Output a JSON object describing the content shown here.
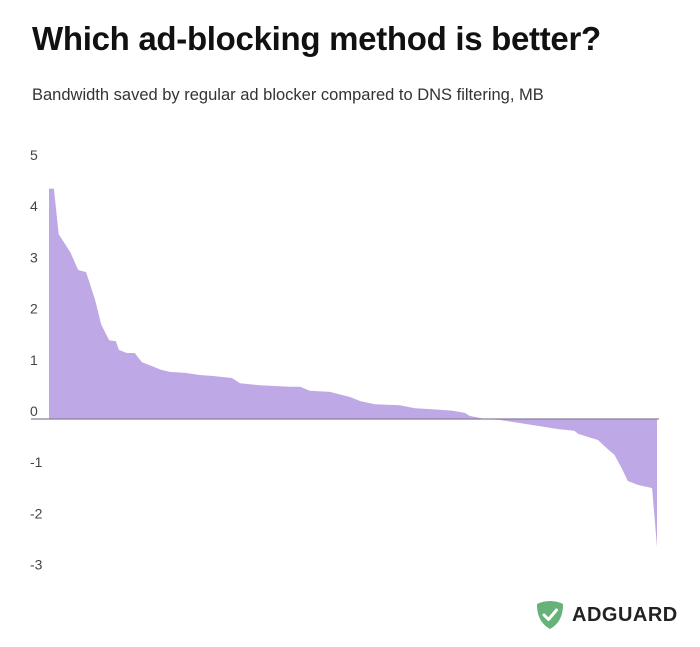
{
  "title": "Which ad-blocking method is better?",
  "subtitle": "Bandwidth saved by regular ad blocker compared to DNS filtering, MB",
  "brand": {
    "name": "ADGUARD",
    "color": "#67b279"
  },
  "chart_data": {
    "type": "area",
    "title": "Which ad-blocking method is better?",
    "subtitle": "Bandwidth saved by regular ad blocker compared to DNS filtering, MB",
    "xlabel": "",
    "ylabel": "",
    "ylim": [
      -3,
      5
    ],
    "yticks": [
      5,
      4,
      3,
      2,
      1,
      0,
      -1,
      -2,
      -3
    ],
    "xlim": [
      0,
      100
    ],
    "grid": false,
    "fill_color": "#bfa8e6",
    "axis_color": "#8a7f96",
    "x": [
      0,
      0.8,
      1.6,
      3.5,
      4.8,
      6.1,
      7.6,
      8.6,
      9.9,
      11.0,
      11.5,
      12.8,
      14.1,
      15.3,
      16.8,
      18.4,
      19.9,
      22.4,
      24.8,
      27.0,
      30.1,
      31.4,
      34.7,
      39.6,
      41.3,
      42.9,
      46.2,
      49.5,
      51.2,
      53.6,
      57.7,
      60.2,
      64.3,
      66.4,
      68.4,
      69.2,
      71.7,
      74.2,
      77.5,
      80.8,
      83.9,
      86.4,
      87.0,
      88.6,
      90.3,
      91.9,
      93.0,
      94.2,
      95.2,
      96.9,
      98.5,
      99.2,
      100
    ],
    "values": [
      4.5,
      4.5,
      3.61,
      3.26,
      2.91,
      2.87,
      2.32,
      1.84,
      1.54,
      1.52,
      1.35,
      1.29,
      1.29,
      1.11,
      1.04,
      0.96,
      0.92,
      0.9,
      0.86,
      0.84,
      0.8,
      0.7,
      0.66,
      0.63,
      0.63,
      0.55,
      0.53,
      0.43,
      0.35,
      0.29,
      0.27,
      0.21,
      0.18,
      0.16,
      0.12,
      0.06,
      0.0,
      -0.02,
      -0.08,
      -0.14,
      -0.2,
      -0.23,
      -0.29,
      -0.35,
      -0.41,
      -0.59,
      -0.7,
      -0.96,
      -1.21,
      -1.29,
      -1.33,
      -1.35,
      -2.5
    ]
  }
}
